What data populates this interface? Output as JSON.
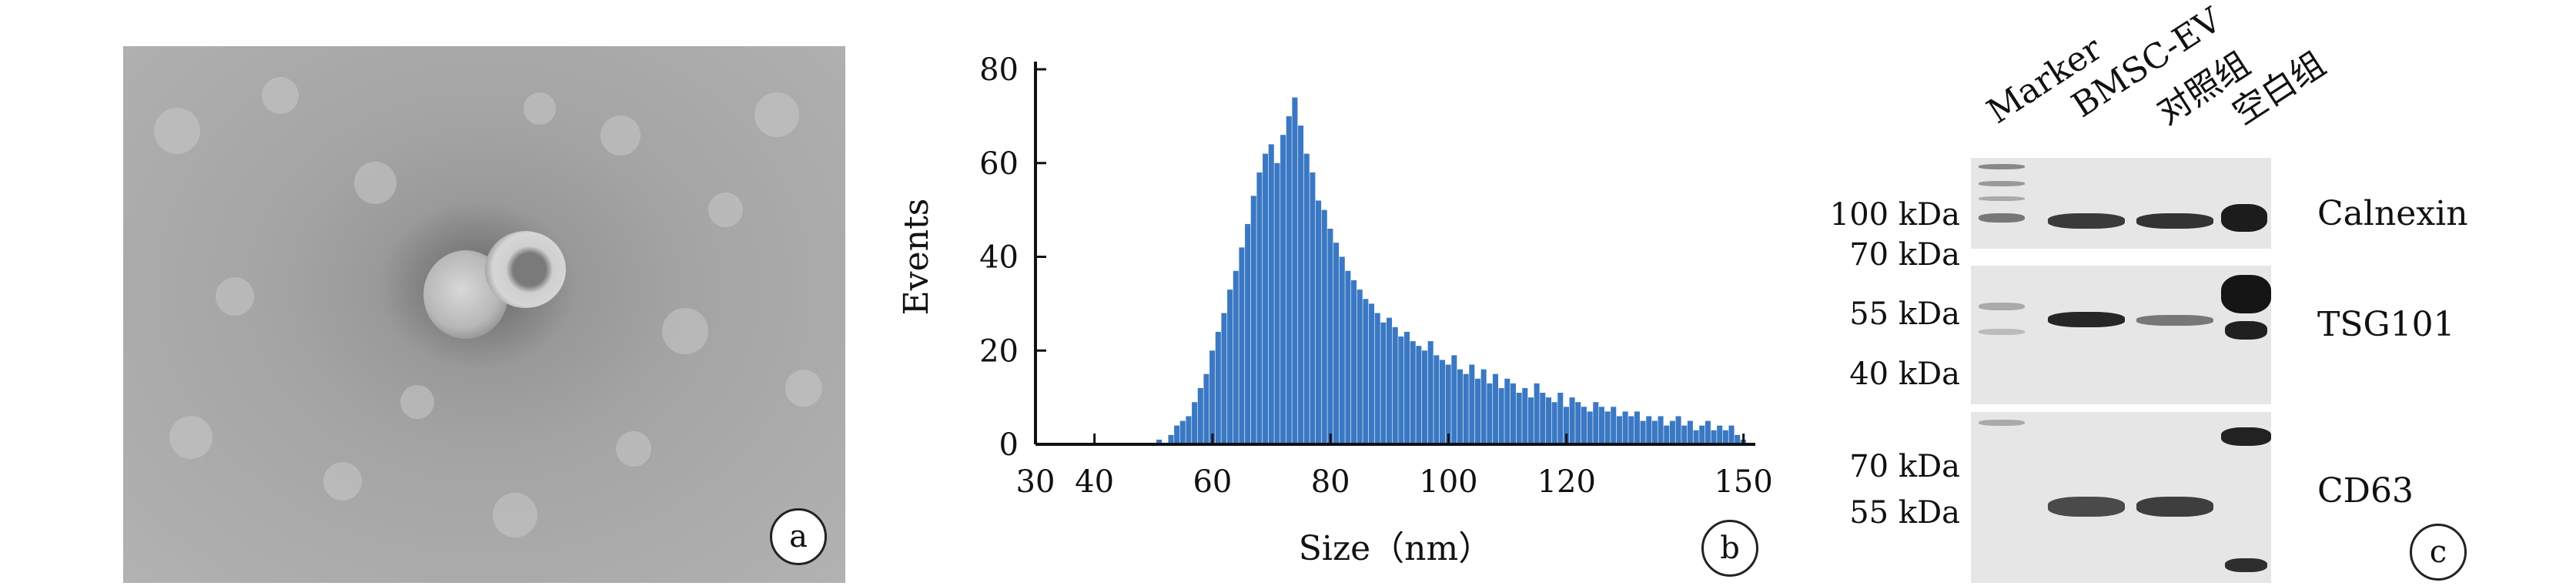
{
  "panel_a": {
    "label": "a"
  },
  "panel_b": {
    "label": "b"
  },
  "panel_c": {
    "label": "c",
    "lanes": [
      "Marker",
      "BMSC-EV",
      "对照组",
      "空白组"
    ],
    "blots": [
      {
        "protein": "Calnexin",
        "markers": [
          "100 kDa",
          "70 kDa"
        ]
      },
      {
        "protein": "TSG101",
        "markers": [
          "55 kDa",
          "40 kDa"
        ]
      },
      {
        "protein": "CD63",
        "markers": [
          "70 kDa",
          "55 kDa"
        ]
      }
    ]
  },
  "chart_data": {
    "type": "bar",
    "xlabel": "Size（nm）",
    "ylabel": "Events",
    "xlim": [
      30,
      152
    ],
    "ylim": [
      0,
      80
    ],
    "xticks": [
      30,
      40,
      60,
      80,
      100,
      120,
      150
    ],
    "yticks": [
      0,
      20,
      40,
      60,
      80
    ],
    "color": "#3a78c3",
    "x": [
      51,
      52,
      53,
      54,
      55,
      56,
      57,
      58,
      59,
      60,
      61,
      62,
      63,
      64,
      65,
      66,
      67,
      68,
      69,
      70,
      71,
      72,
      73,
      74,
      75,
      76,
      77,
      78,
      79,
      80,
      81,
      82,
      83,
      84,
      85,
      86,
      87,
      88,
      89,
      90,
      91,
      92,
      93,
      94,
      95,
      96,
      97,
      98,
      99,
      100,
      101,
      102,
      103,
      104,
      105,
      106,
      107,
      108,
      109,
      110,
      111,
      112,
      113,
      114,
      115,
      116,
      117,
      118,
      119,
      120,
      121,
      122,
      123,
      124,
      125,
      126,
      127,
      128,
      129,
      130,
      131,
      132,
      133,
      134,
      135,
      136,
      137,
      138,
      139,
      140,
      141,
      142,
      143,
      144,
      145,
      146,
      147,
      148,
      149,
      150
    ],
    "values": [
      1,
      0,
      2,
      4,
      5,
      6,
      9,
      12,
      15,
      20,
      24,
      28,
      33,
      37,
      42,
      47,
      53,
      58,
      62,
      64,
      60,
      66,
      70,
      74,
      68,
      62,
      58,
      52,
      50,
      46,
      43,
      40,
      37,
      35,
      33,
      31,
      30,
      28,
      26,
      27,
      25,
      23,
      24,
      22,
      21,
      20,
      22,
      19,
      18,
      17,
      19,
      16,
      15,
      17,
      14,
      16,
      13,
      15,
      12,
      14,
      13,
      11,
      12,
      10,
      13,
      11,
      10,
      9,
      11,
      8,
      10,
      9,
      8,
      7,
      9,
      8,
      7,
      8,
      6,
      7,
      6,
      7,
      5,
      6,
      5,
      6,
      4,
      5,
      6,
      4,
      5,
      3,
      4,
      5,
      3,
      4,
      3,
      4,
      2,
      1
    ]
  }
}
